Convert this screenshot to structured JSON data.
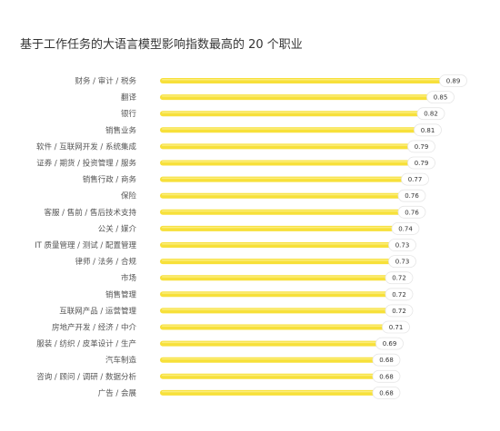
{
  "chart_data": {
    "type": "bar",
    "orientation": "horizontal",
    "title": "基于工作任务的大语言模型影响指数最高的 20 个职业",
    "categories": [
      "财务 / 审计 / 税务",
      "翻译",
      "银行",
      "销售业务",
      "软件 / 互联网开发 / 系统集成",
      "证券 / 期货 / 投资管理 / 服务",
      "销售行政 / 商务",
      "保险",
      "客服 / 售前 / 售后技术支持",
      "公关 / 媒介",
      "IT 质量管理 / 测试 / 配置管理",
      "律师 / 法务 / 合规",
      "市场",
      "销售管理",
      "互联网产品 / 运营管理",
      "房地产开发 / 经济 / 中介",
      "服装 / 纺织 / 皮革设计 / 生产",
      "汽车制造",
      "咨询 / 顾问 / 调研 / 数据分析",
      "广告 / 会展"
    ],
    "values": [
      0.89,
      0.85,
      0.82,
      0.81,
      0.79,
      0.79,
      0.77,
      0.76,
      0.76,
      0.74,
      0.73,
      0.73,
      0.72,
      0.72,
      0.72,
      0.71,
      0.69,
      0.68,
      0.68,
      0.68
    ],
    "value_labels": [
      "0.89",
      "0.85",
      "0.82",
      "0.81",
      "0.79",
      "0.79",
      "0.77",
      "0.76",
      "0.76",
      "0.74",
      "0.73",
      "0.73",
      "0.72",
      "0.72",
      "0.72",
      "0.71",
      "0.69",
      "0.68",
      "0.68",
      "0.68"
    ],
    "xlim": [
      0,
      1
    ],
    "grid": false,
    "legend": "none",
    "colors": {
      "bar": "#f7e03a",
      "bar_highlight": "#fbed7c",
      "label_pill_border": "#e6e6e6",
      "label_pill_fill": "#ffffff"
    }
  }
}
